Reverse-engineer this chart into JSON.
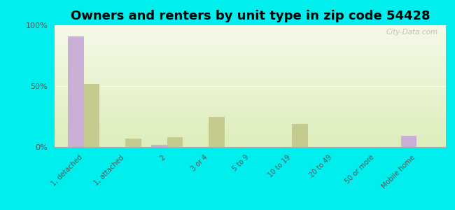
{
  "title": "Owners and renters by unit type in zip code 54428",
  "categories": [
    "1, detached",
    "1, attached",
    "2",
    "3 or 4",
    "5 to 9",
    "10 to 19",
    "20 to 49",
    "50 or more",
    "Mobile home"
  ],
  "owner_values": [
    91,
    0,
    2,
    0,
    0,
    0,
    0,
    0,
    9
  ],
  "renter_values": [
    52,
    7,
    8,
    25,
    0,
    19,
    0,
    0,
    0
  ],
  "owner_color": "#c9aed6",
  "renter_color": "#c5ca8e",
  "background_top": "#f5f9e8",
  "background_bottom": "#ddeebb",
  "outer_background": "#00eeee",
  "ylim": [
    0,
    100
  ],
  "yticks": [
    0,
    50,
    100
  ],
  "ytick_labels": [
    "0%",
    "50%",
    "100%"
  ],
  "bar_width": 0.38,
  "title_fontsize": 13,
  "watermark": "City-Data.com"
}
